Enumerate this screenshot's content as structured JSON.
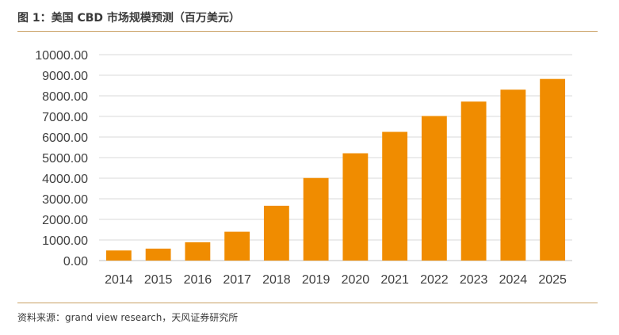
{
  "figure": {
    "title": "图 1：美国 CBD 市场规模预测（百万美元）",
    "source": "资料来源：grand view research，天风证券研究所"
  },
  "chart_data": {
    "type": "bar",
    "title": "图 1：美国 CBD 市场规模预测（百万美元）",
    "xlabel": "",
    "ylabel": "",
    "categories": [
      "2014",
      "2015",
      "2016",
      "2017",
      "2018",
      "2019",
      "2020",
      "2021",
      "2022",
      "2023",
      "2024",
      "2025"
    ],
    "values": [
      490,
      580,
      890,
      1400,
      2660,
      4010,
      5210,
      6250,
      7020,
      7720,
      8300,
      8820
    ],
    "ylim": [
      0,
      10000
    ],
    "yticks": [
      "0.00",
      "1000.00",
      "2000.00",
      "3000.00",
      "4000.00",
      "5000.00",
      "6000.00",
      "7000.00",
      "8000.00",
      "9000.00",
      "10000.00"
    ],
    "bar_color": "#f08c00",
    "grid": true,
    "grid_color": "#d9d9d9",
    "legend": "none"
  }
}
